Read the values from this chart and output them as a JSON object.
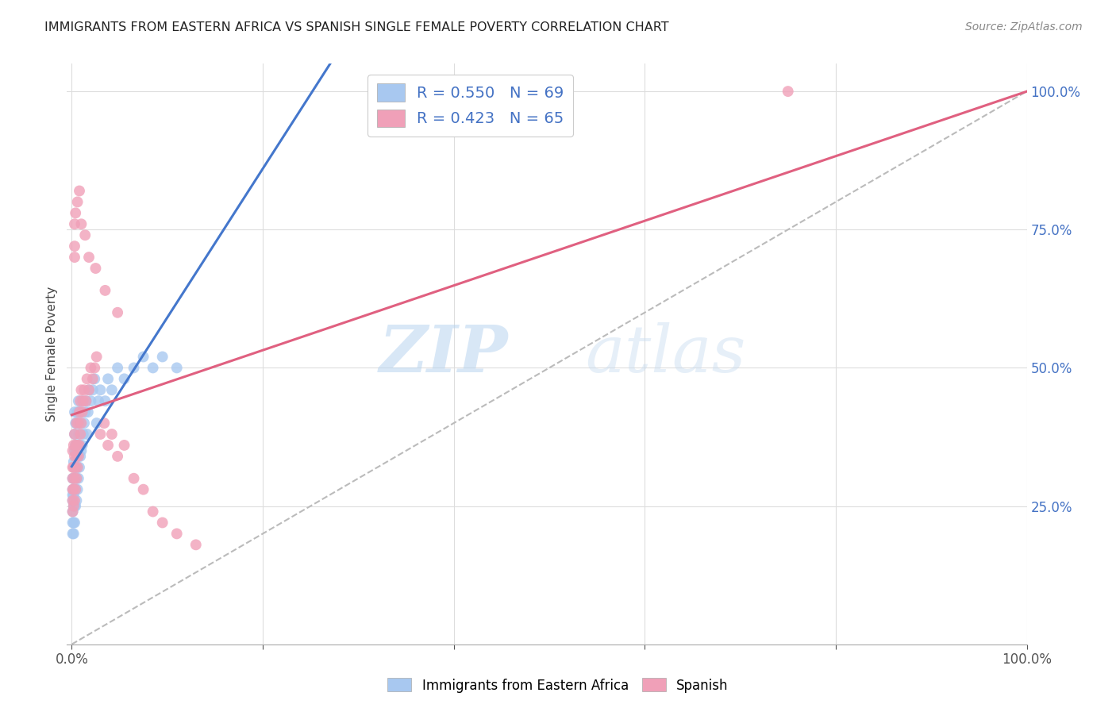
{
  "title": "IMMIGRANTS FROM EASTERN AFRICA VS SPANISH SINGLE FEMALE POVERTY CORRELATION CHART",
  "source": "Source: ZipAtlas.com",
  "ylabel": "Single Female Poverty",
  "legend_blue_label": "Immigrants from Eastern Africa",
  "legend_pink_label": "Spanish",
  "R_blue": 0.55,
  "N_blue": 69,
  "R_pink": 0.423,
  "N_pink": 65,
  "blue_color": "#a8c8f0",
  "pink_color": "#f0a0b8",
  "blue_line_color": "#4477cc",
  "pink_line_color": "#e06080",
  "diagonal_color": "#bbbbbb",
  "blue_x": [
    0.001,
    0.001,
    0.001,
    0.001,
    0.001,
    0.001,
    0.001,
    0.002,
    0.002,
    0.002,
    0.002,
    0.002,
    0.002,
    0.003,
    0.003,
    0.003,
    0.003,
    0.003,
    0.003,
    0.003,
    0.004,
    0.004,
    0.004,
    0.004,
    0.004,
    0.005,
    0.005,
    0.005,
    0.005,
    0.006,
    0.006,
    0.006,
    0.006,
    0.007,
    0.007,
    0.007,
    0.007,
    0.008,
    0.008,
    0.008,
    0.009,
    0.009,
    0.01,
    0.01,
    0.011,
    0.011,
    0.012,
    0.013,
    0.014,
    0.015,
    0.016,
    0.017,
    0.018,
    0.02,
    0.022,
    0.024,
    0.026,
    0.028,
    0.03,
    0.035,
    0.038,
    0.042,
    0.048,
    0.055,
    0.065,
    0.075,
    0.085,
    0.095,
    0.11
  ],
  "blue_y": [
    0.2,
    0.22,
    0.24,
    0.26,
    0.27,
    0.28,
    0.3,
    0.2,
    0.22,
    0.25,
    0.27,
    0.3,
    0.33,
    0.22,
    0.25,
    0.28,
    0.32,
    0.35,
    0.38,
    0.42,
    0.25,
    0.28,
    0.32,
    0.36,
    0.4,
    0.26,
    0.3,
    0.35,
    0.4,
    0.28,
    0.32,
    0.36,
    0.42,
    0.3,
    0.34,
    0.38,
    0.44,
    0.32,
    0.36,
    0.42,
    0.34,
    0.4,
    0.35,
    0.42,
    0.36,
    0.44,
    0.38,
    0.4,
    0.42,
    0.44,
    0.38,
    0.42,
    0.46,
    0.44,
    0.46,
    0.48,
    0.4,
    0.44,
    0.46,
    0.44,
    0.48,
    0.46,
    0.5,
    0.48,
    0.5,
    0.52,
    0.5,
    0.52,
    0.5
  ],
  "pink_x": [
    0.001,
    0.001,
    0.001,
    0.001,
    0.001,
    0.001,
    0.002,
    0.002,
    0.002,
    0.002,
    0.003,
    0.003,
    0.003,
    0.003,
    0.004,
    0.004,
    0.004,
    0.005,
    0.005,
    0.005,
    0.006,
    0.006,
    0.007,
    0.007,
    0.008,
    0.008,
    0.009,
    0.009,
    0.01,
    0.01,
    0.011,
    0.012,
    0.013,
    0.015,
    0.016,
    0.018,
    0.02,
    0.022,
    0.024,
    0.026,
    0.03,
    0.034,
    0.038,
    0.042,
    0.048,
    0.055,
    0.065,
    0.075,
    0.085,
    0.095,
    0.11,
    0.13,
    0.003,
    0.003,
    0.003,
    0.004,
    0.006,
    0.008,
    0.01,
    0.014,
    0.018,
    0.025,
    0.035,
    0.048,
    0.75
  ],
  "pink_y": [
    0.24,
    0.26,
    0.28,
    0.3,
    0.32,
    0.35,
    0.25,
    0.28,
    0.32,
    0.36,
    0.26,
    0.3,
    0.34,
    0.38,
    0.28,
    0.32,
    0.36,
    0.3,
    0.34,
    0.4,
    0.32,
    0.36,
    0.34,
    0.4,
    0.36,
    0.42,
    0.38,
    0.44,
    0.4,
    0.46,
    0.42,
    0.44,
    0.46,
    0.44,
    0.48,
    0.46,
    0.5,
    0.48,
    0.5,
    0.52,
    0.38,
    0.4,
    0.36,
    0.38,
    0.34,
    0.36,
    0.3,
    0.28,
    0.24,
    0.22,
    0.2,
    0.18,
    0.7,
    0.72,
    0.76,
    0.78,
    0.8,
    0.82,
    0.76,
    0.74,
    0.7,
    0.68,
    0.64,
    0.6,
    1.0
  ],
  "watermark_zip": "ZIP",
  "watermark_atlas": "atlas",
  "background_color": "#ffffff",
  "grid_color": "#dddddd"
}
